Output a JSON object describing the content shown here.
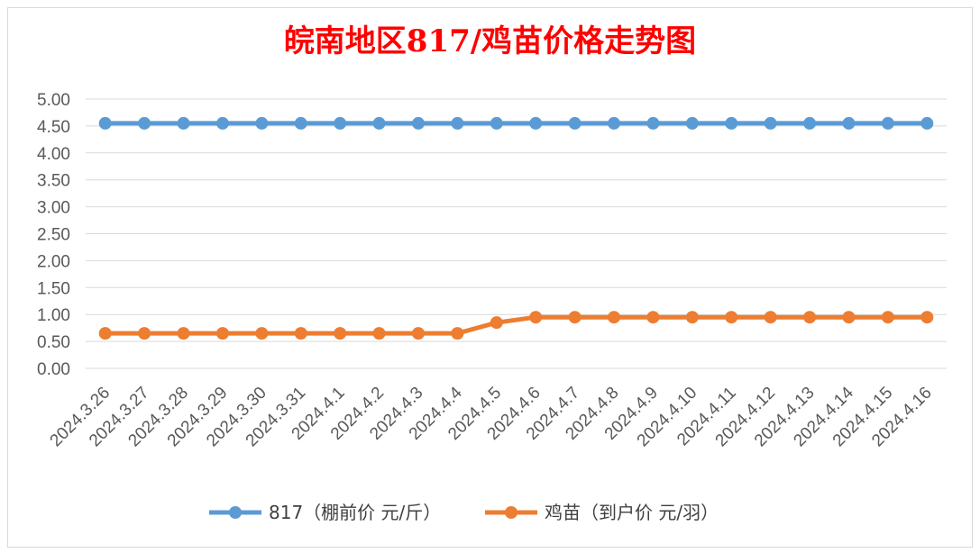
{
  "chart_data": {
    "type": "line",
    "title": "皖南地区817/鸡苗价格走势图",
    "categories": [
      "2024.3.26",
      "2024.3.27",
      "2024.3.28",
      "2024.3.29",
      "2024.3.30",
      "2024.3.31",
      "2024.4.1",
      "2024.4.2",
      "2024.4.3",
      "2024.4.4",
      "2024.4.5",
      "2024.4.6",
      "2024.4.7",
      "2024.4.8",
      "2024.4.9",
      "2024.4.10",
      "2024.4.11",
      "2024.4.12",
      "2024.4.13",
      "2024.4.14",
      "2024.4.15",
      "2024.4.16"
    ],
    "series": [
      {
        "name": "817（棚前价 元/斤）",
        "color": "#5b9bd5",
        "values": [
          4.55,
          4.55,
          4.55,
          4.55,
          4.55,
          4.55,
          4.55,
          4.55,
          4.55,
          4.55,
          4.55,
          4.55,
          4.55,
          4.55,
          4.55,
          4.55,
          4.55,
          4.55,
          4.55,
          4.55,
          4.55,
          4.55
        ]
      },
      {
        "name": "鸡苗（到户价 元/羽）",
        "color": "#ed7d31",
        "values": [
          0.65,
          0.65,
          0.65,
          0.65,
          0.65,
          0.65,
          0.65,
          0.65,
          0.65,
          0.65,
          0.85,
          0.95,
          0.95,
          0.95,
          0.95,
          0.95,
          0.95,
          0.95,
          0.95,
          0.95,
          0.95,
          0.95
        ]
      }
    ],
    "yticks": [
      "0.00",
      "0.50",
      "1.00",
      "1.50",
      "2.00",
      "2.50",
      "3.00",
      "3.50",
      "4.00",
      "4.50",
      "5.00"
    ],
    "ylim": [
      0,
      5
    ],
    "grid": true,
    "legend": "bottom",
    "xlabel": "",
    "ylabel": ""
  }
}
